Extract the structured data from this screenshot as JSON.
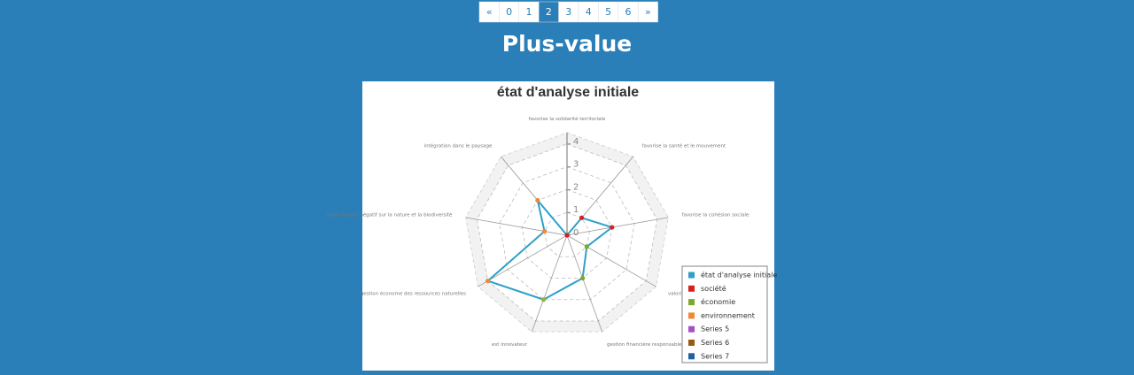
{
  "pagination": {
    "items": [
      "«",
      "0",
      "1",
      "2",
      "3",
      "4",
      "5",
      "6",
      "»"
    ],
    "active": 3
  },
  "heading": "Plus-value",
  "chart_data": {
    "type": "radar",
    "title": "état d'analyse initiale",
    "categories": [
      "favorise la solidarité territoriale",
      "favorise la santé et le mouvement",
      "favorise la cohésion sociale",
      "valoriser l'économie",
      "gestion financière responsable",
      "est innovateur",
      "gestion économe des ressources naturelles",
      "faible impact négatif sur la nature et la biodiversité",
      "intégration dans le paysage"
    ],
    "ylim": [
      0,
      4.5
    ],
    "yticks": [
      0,
      1,
      2,
      3,
      4
    ],
    "grid": true,
    "legend": "bottom-right",
    "series": [
      {
        "name": "état d'analyse initiale",
        "color": "#2ea0c8",
        "values": [
          0,
          1,
          2,
          1,
          2,
          3,
          4,
          1,
          2
        ],
        "point_colors": [
          "#d62020",
          "#d62020",
          "#d62020",
          "#7ea829",
          "#7ea829",
          "#a0b030",
          "#f0883a",
          "#f0883a",
          "#f0883a"
        ]
      },
      {
        "name": "société",
        "color": "#d62020"
      },
      {
        "name": "économie",
        "color": "#7ea829"
      },
      {
        "name": "environnement",
        "color": "#f0883a"
      },
      {
        "name": "Series 5",
        "color": "#a64fc8"
      },
      {
        "name": "Series 6",
        "color": "#9a5a10"
      },
      {
        "name": "Series 7",
        "color": "#2060a0"
      }
    ]
  }
}
